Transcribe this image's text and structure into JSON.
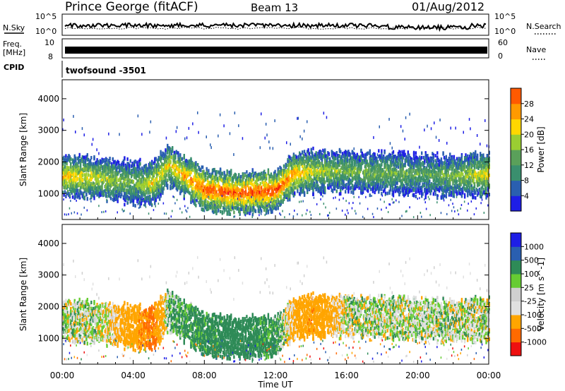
{
  "header": {
    "title": "Prince George (fitACF)",
    "beam": "Beam 13",
    "date": "01/Aug/2012"
  },
  "top_panels": {
    "nsky": {
      "label": "N.Sky",
      "ticks": [
        "10^5",
        "10^0"
      ]
    },
    "nsearch": {
      "label": "N.Search",
      "ticks": [
        "10^5",
        "10^0"
      ]
    },
    "freq": {
      "label": "Freq.",
      "unit": "[MHz]",
      "ticks": [
        "10",
        "8"
      ]
    },
    "nave": {
      "label": "Nave",
      "ticks": [
        "60",
        "0"
      ]
    },
    "cpid": {
      "label": "CPID",
      "value": "twofsound -3501"
    }
  },
  "colors": {
    "power": [
      "#1e1ee6",
      "#2a5fb0",
      "#3a8f6e",
      "#5aa05a",
      "#9acd32",
      "#ffd700",
      "#ff9a00",
      "#ff5a00",
      "#ee1010"
    ],
    "velocity": [
      "#ee1010",
      "#ff6a00",
      "#ffa500",
      "#e0e0e0",
      "#cfcfcf",
      "#66cc33",
      "#2e8b57",
      "#2a5fb0",
      "#1e1ee6"
    ]
  },
  "chart_data": [
    {
      "type": "heatmap",
      "name": "power",
      "ylabel": "Slant Range [km]",
      "yticks": [
        1000,
        2000,
        3000,
        4000
      ],
      "ylim": [
        180,
        4600
      ],
      "xlim": [
        0,
        24
      ],
      "colorbar_label": "Power [dB]",
      "colorbar_ticks": [
        "4",
        "8",
        "12",
        "16",
        "20",
        "24",
        "28"
      ],
      "approx_band": {
        "hours": [
          0,
          2,
          4,
          5,
          6,
          8,
          10,
          12,
          13,
          14,
          16,
          18,
          20,
          22,
          24
        ],
        "range_km": [
          1550,
          1500,
          1350,
          1300,
          1900,
          1100,
          1000,
          1100,
          1600,
          1700,
          1700,
          1650,
          1600,
          1550,
          1600
        ],
        "power_db": [
          22,
          18,
          14,
          20,
          20,
          28,
          28,
          28,
          24,
          18,
          14,
          14,
          12,
          14,
          20
        ]
      }
    },
    {
      "type": "heatmap",
      "name": "velocity",
      "ylabel": "Slant Range [km]",
      "yticks": [
        1000,
        2000,
        3000,
        4000
      ],
      "ylim": [
        180,
        4600
      ],
      "xlim": [
        0,
        24
      ],
      "xticks": [
        "00:00",
        "04:00",
        "08:00",
        "12:00",
        "16:00",
        "20:00",
        "00:00"
      ],
      "xlabel": "Time UT",
      "colorbar_label": "Velocity [m s^-1]",
      "colorbar_ticks": [
        "-1000",
        "-500",
        "-100",
        "-25",
        "25",
        "100",
        "500",
        "1000"
      ],
      "approx_band": {
        "hours": [
          0,
          2,
          4,
          5,
          6,
          8,
          10,
          12,
          13,
          14,
          16,
          18,
          20,
          22,
          24
        ],
        "range_km": [
          1550,
          1500,
          1350,
          1300,
          1900,
          1100,
          1000,
          1100,
          1600,
          1700,
          1700,
          1650,
          1600,
          1550,
          1600
        ],
        "velocity": [
          0,
          0,
          -300,
          -600,
          100,
          200,
          300,
          150,
          -200,
          -400,
          0,
          0,
          0,
          0,
          0
        ]
      }
    }
  ]
}
